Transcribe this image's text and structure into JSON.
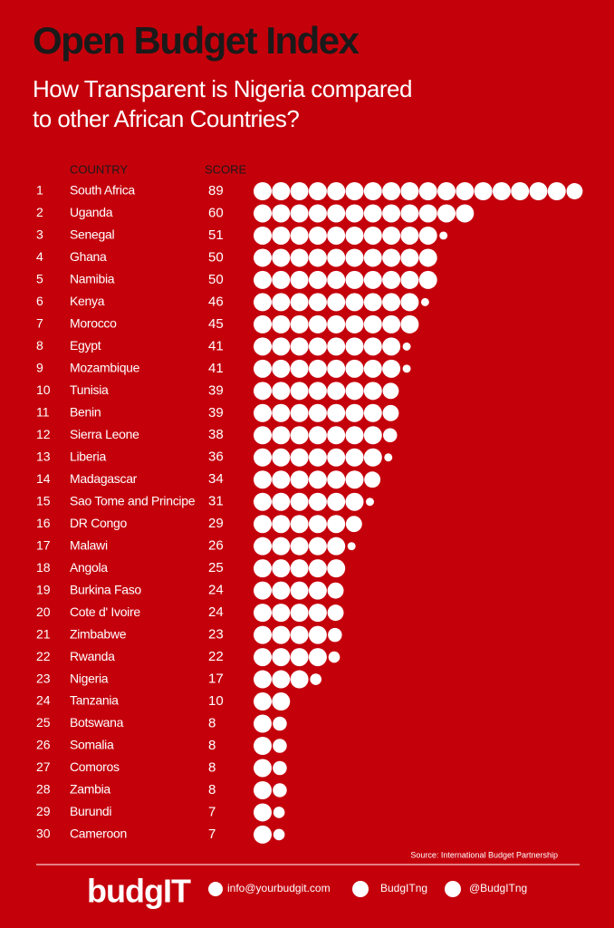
{
  "chart_data": {
    "type": "dotbar",
    "title": "Open Budget Index",
    "subtitle": "How Transparent is Nigeria compared to other African Countries?",
    "rank_header": null,
    "category_header": "COUNTRY",
    "value_header": "SCORE",
    "ranks": [
      1,
      2,
      3,
      4,
      5,
      6,
      7,
      8,
      9,
      10,
      11,
      12,
      13,
      14,
      15,
      16,
      17,
      18,
      19,
      20,
      21,
      22,
      23,
      24,
      25,
      26,
      27,
      28,
      29,
      30
    ],
    "categories": [
      "South Africa",
      "Uganda",
      "Senegal",
      "Ghana",
      "Namibia",
      "Kenya",
      "Morocco",
      "Egypt",
      "Mozambique",
      "Tunisia",
      "Benin",
      "Sierra Leone",
      "Liberia",
      "Madagascar",
      "Sao Tome and Principe",
      "DR Congo",
      "Malawi",
      "Angola",
      "Burkina Faso",
      "Cote d' Ivoire",
      "Zimbabwe",
      "Rwanda",
      "Nigeria",
      "Tanzania",
      "Botswana",
      "Somalia",
      "Comoros",
      "Zambia",
      "Burundi",
      "Cameroon"
    ],
    "values": [
      89,
      60,
      51,
      50,
      50,
      46,
      45,
      41,
      41,
      39,
      39,
      38,
      36,
      34,
      31,
      29,
      26,
      25,
      24,
      24,
      23,
      22,
      17,
      10,
      8,
      8,
      8,
      8,
      7,
      7
    ],
    "color": "#ffffff",
    "source": "Source: International Budget Partnership"
  },
  "footer": {
    "logo": "budgIT",
    "email": "info@yourbudgit.com",
    "facebook": "BudgITng",
    "twitter": "@BudgITng"
  }
}
